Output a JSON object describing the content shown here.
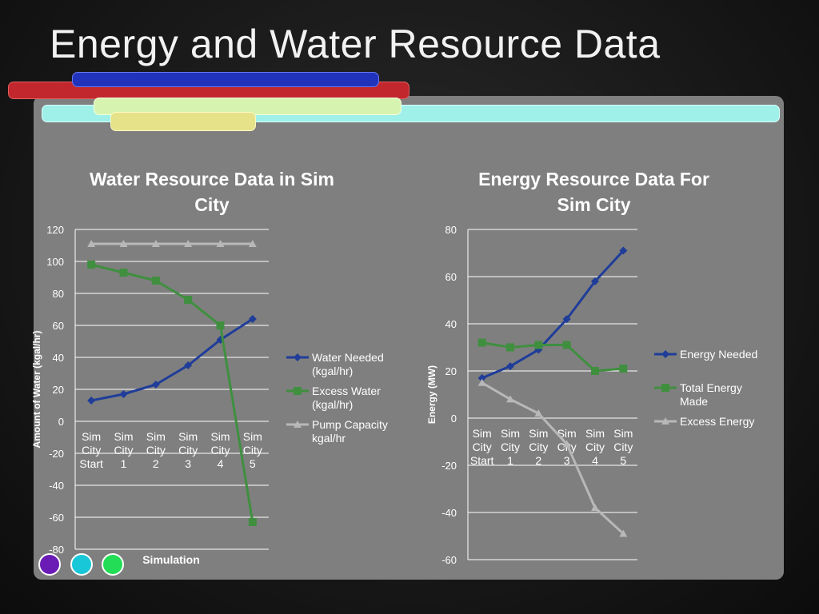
{
  "slide": {
    "title": "Energy and Water Resource Data"
  },
  "colors": {
    "blue": "#1f3d99",
    "green": "#3f8f3f",
    "gray": "#b8b8b8",
    "grid": "#ffffff",
    "axis_text": "#ffffff"
  },
  "chart_data": [
    {
      "type": "line",
      "title": "Water Resource Data in Sim City",
      "title_lines": [
        "Water Resource Data in Sim",
        "City"
      ],
      "xlabel": "Simulation",
      "ylabel": "Amount of Water (kgal/hr)",
      "categories": [
        "Sim City Start",
        "Sim City 1",
        "Sim City 2",
        "Sim City 3",
        "Sim City 4",
        "Sim City 5"
      ],
      "ylim": [
        -80,
        120
      ],
      "yticks": [
        120,
        100,
        80,
        60,
        40,
        20,
        0,
        -20,
        -40,
        -60,
        -80
      ],
      "grid": true,
      "legend_position": "right",
      "series": [
        {
          "name": "Water Needed (kgal/hr)",
          "legend_lines": [
            "Water Needed",
            "(kgal/hr)"
          ],
          "color": "#1f3d99",
          "marker": "diamond",
          "values": [
            13,
            17,
            23,
            35,
            51,
            64
          ]
        },
        {
          "name": "Excess Water (kgal/hr)",
          "legend_lines": [
            "Excess Water",
            "(kgal/hr)"
          ],
          "color": "#3f8f3f",
          "marker": "square",
          "values": [
            98,
            93,
            88,
            76,
            60,
            -63
          ]
        },
        {
          "name": "Pump Capacity kgal/hr",
          "legend_lines": [
            "Pump Capacity",
            "kgal/hr"
          ],
          "color": "#b8b8b8",
          "marker": "triangle",
          "values": [
            111,
            111,
            111,
            111,
            111,
            111
          ]
        }
      ]
    },
    {
      "type": "line",
      "title": "Energy Resource Data For Sim City",
      "title_lines": [
        "Energy Resource Data For",
        "Sim City"
      ],
      "xlabel": "",
      "ylabel": "Energy (MW)",
      "categories": [
        "Sim City Start",
        "Sim City 1",
        "Sim City 2",
        "Sim City 3",
        "Sim City 4",
        "Sim City 5"
      ],
      "ylim": [
        -60,
        80
      ],
      "yticks": [
        80,
        60,
        40,
        20,
        0,
        -20,
        -40,
        -60
      ],
      "grid": true,
      "legend_position": "right",
      "series": [
        {
          "name": "Energy Needed",
          "legend_lines": [
            "Energy Needed"
          ],
          "color": "#1f3d99",
          "marker": "diamond",
          "values": [
            17,
            22,
            29,
            42,
            58,
            71
          ]
        },
        {
          "name": "Total Energy Made",
          "legend_lines": [
            "Total Energy",
            "Made"
          ],
          "color": "#3f8f3f",
          "marker": "square",
          "values": [
            32,
            30,
            31,
            31,
            20,
            21
          ]
        },
        {
          "name": "Excess Energy",
          "legend_lines": [
            "Excess Energy"
          ],
          "color": "#b8b8b8",
          "marker": "triangle",
          "values": [
            15,
            8,
            2,
            -11,
            -38,
            -49
          ]
        }
      ]
    }
  ]
}
